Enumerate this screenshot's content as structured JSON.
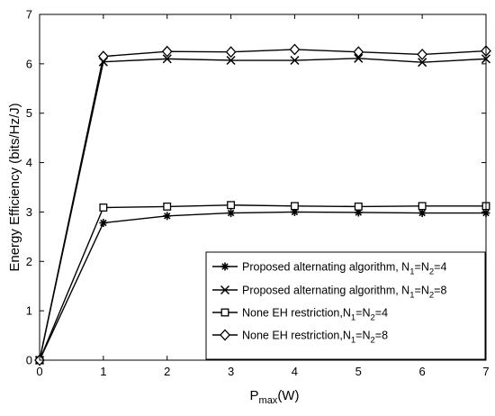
{
  "chart_data": {
    "type": "line",
    "title": "",
    "xlabel": "P",
    "xlabel_sub": "max",
    "xlabel_unit": "(W)",
    "ylabel": "Energy Efficiency (bits/Hz/J)",
    "xlim": [
      0,
      7
    ],
    "ylim": [
      0,
      7
    ],
    "x_ticks": [
      "0",
      "1",
      "2",
      "3",
      "4",
      "5",
      "6",
      "7"
    ],
    "y_ticks": [
      "0",
      "1",
      "2",
      "3",
      "4",
      "5",
      "6",
      "7"
    ],
    "grid": false,
    "legend_position": "bottom-right",
    "x": [
      0,
      1,
      2,
      3,
      4,
      5,
      6,
      7
    ],
    "series": [
      {
        "name": "Proposed alternating algorithm, N1=N2=4",
        "legend": {
          "main": "Proposed alternating algorithm, N",
          "s1": "1",
          "mid": "=N",
          "s2": "2",
          "end": "=4"
        },
        "marker": "asterisk",
        "values": [
          0,
          2.78,
          2.92,
          2.98,
          3.0,
          2.99,
          2.98,
          2.98
        ]
      },
      {
        "name": "Proposed alternating algorithm, N1=N2=8",
        "legend": {
          "main": "Proposed alternating algorithm, N",
          "s1": "1",
          "mid": "=N",
          "s2": "2",
          "end": "=8"
        },
        "marker": "x",
        "values": [
          0,
          6.04,
          6.1,
          6.07,
          6.07,
          6.11,
          6.03,
          6.1
        ]
      },
      {
        "name": "None EH restriction,N1=N2=4",
        "legend": {
          "main": "None EH restriction,N",
          "s1": "1",
          "mid": "=N",
          "s2": "2",
          "end": "=4"
        },
        "marker": "square",
        "values": [
          0,
          3.09,
          3.11,
          3.14,
          3.12,
          3.11,
          3.12,
          3.12
        ]
      },
      {
        "name": "None EH restriction,N1=N2=8",
        "legend": {
          "main": "None EH restriction,N",
          "s1": "1",
          "mid": "=N",
          "s2": "2",
          "end": "=8"
        },
        "marker": "diamond",
        "values": [
          0,
          6.15,
          6.25,
          6.24,
          6.29,
          6.24,
          6.19,
          6.26
        ]
      }
    ]
  }
}
